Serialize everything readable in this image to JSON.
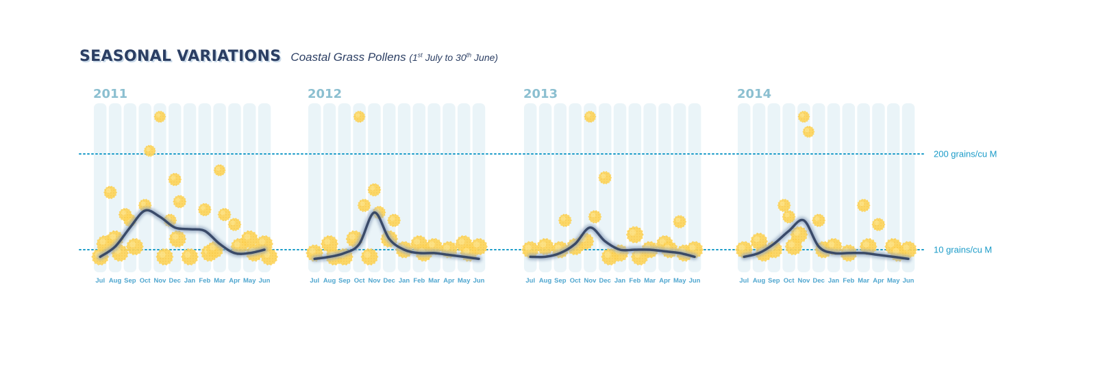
{
  "title": "SEASONAL VARIATIONS",
  "subtitle": {
    "main": "Coastal Grass Pollens",
    "paren_open": "(1",
    "sup1": "st",
    "mid": " July to 30",
    "sup2": "th",
    "paren_close": " June)"
  },
  "colors": {
    "title": "#2b3e63",
    "year_label": "#8bbfd0",
    "month_label": "#4fa6cf",
    "reference_line": "#1a9bc8",
    "column_bg": "#eaf4f8",
    "pollen": "#fdd55c",
    "trend": "#2d3e5e"
  },
  "chart_data": {
    "type": "scatter",
    "y_scale": "log",
    "x_categories": [
      "Jul",
      "Aug",
      "Sep",
      "Oct",
      "Nov",
      "Dec",
      "Jan",
      "Feb",
      "Mar",
      "Apr",
      "May",
      "Jun"
    ],
    "reference_lines": [
      {
        "value": 200,
        "label": "200 grains/cu M"
      },
      {
        "value": 10,
        "label": "10 grains/cu M"
      }
    ],
    "panels": [
      {
        "year": "2011",
        "points": [
          {
            "month": "Jul",
            "value": 8
          },
          {
            "month": "Jul",
            "value": 12
          },
          {
            "month": "Aug",
            "value": 14
          },
          {
            "month": "Aug",
            "value": 9
          },
          {
            "month": "Aug",
            "value": 60
          },
          {
            "month": "Sep",
            "value": 25
          },
          {
            "month": "Sep",
            "value": 11
          },
          {
            "month": "Sep",
            "value": 30
          },
          {
            "month": "Oct",
            "value": 40
          },
          {
            "month": "Oct",
            "value": 220
          },
          {
            "month": "Nov",
            "value": 640
          },
          {
            "month": "Nov",
            "value": 8
          },
          {
            "month": "Dec",
            "value": 90
          },
          {
            "month": "Dec",
            "value": 45
          },
          {
            "month": "Dec",
            "value": 25
          },
          {
            "month": "Dec",
            "value": 14
          },
          {
            "month": "Jan",
            "value": 8
          },
          {
            "month": "Feb",
            "value": 35
          },
          {
            "month": "Feb",
            "value": 9
          },
          {
            "month": "Mar",
            "value": 120
          },
          {
            "month": "Mar",
            "value": 30
          },
          {
            "month": "Mar",
            "value": 10
          },
          {
            "month": "Apr",
            "value": 22
          },
          {
            "month": "Apr",
            "value": 11
          },
          {
            "month": "May",
            "value": 14
          },
          {
            "month": "May",
            "value": 9
          },
          {
            "month": "Jun",
            "value": 12
          },
          {
            "month": "Jun",
            "value": 8
          }
        ],
        "trend": [
          8,
          11,
          20,
          34,
          28,
          20,
          19,
          18,
          12,
          9,
          9,
          10
        ]
      },
      {
        "year": "2012",
        "points": [
          {
            "month": "Jul",
            "value": 9
          },
          {
            "month": "Aug",
            "value": 12
          },
          {
            "month": "Aug",
            "value": 8
          },
          {
            "month": "Sep",
            "value": 8
          },
          {
            "month": "Oct",
            "value": 640
          },
          {
            "month": "Oct",
            "value": 40
          },
          {
            "month": "Oct",
            "value": 14
          },
          {
            "month": "Nov",
            "value": 65
          },
          {
            "month": "Nov",
            "value": 32
          },
          {
            "month": "Nov",
            "value": 8
          },
          {
            "month": "Dec",
            "value": 14
          },
          {
            "month": "Dec",
            "value": 25
          },
          {
            "month": "Jan",
            "value": 10
          },
          {
            "month": "Feb",
            "value": 12
          },
          {
            "month": "Feb",
            "value": 9
          },
          {
            "month": "Mar",
            "value": 11
          },
          {
            "month": "Apr",
            "value": 10
          },
          {
            "month": "May",
            "value": 12
          },
          {
            "month": "May",
            "value": 9
          },
          {
            "month": "Jun",
            "value": 11
          }
        ],
        "trend": [
          7.5,
          8,
          9,
          12,
          32,
          14,
          10,
          9,
          9,
          8.5,
          8,
          7.5
        ]
      },
      {
        "year": "2013",
        "points": [
          {
            "month": "Jul",
            "value": 10
          },
          {
            "month": "Aug",
            "value": 11
          },
          {
            "month": "Sep",
            "value": 10
          },
          {
            "month": "Sep",
            "value": 25
          },
          {
            "month": "Oct",
            "value": 11
          },
          {
            "month": "Nov",
            "value": 640
          },
          {
            "month": "Nov",
            "value": 28
          },
          {
            "month": "Nov",
            "value": 13
          },
          {
            "month": "Dec",
            "value": 95
          },
          {
            "month": "Dec",
            "value": 8
          },
          {
            "month": "Jan",
            "value": 9
          },
          {
            "month": "Feb",
            "value": 16
          },
          {
            "month": "Feb",
            "value": 8
          },
          {
            "month": "Mar",
            "value": 10
          },
          {
            "month": "Apr",
            "value": 12
          },
          {
            "month": "Apr",
            "value": 10
          },
          {
            "month": "May",
            "value": 24
          },
          {
            "month": "May",
            "value": 9
          },
          {
            "month": "Jun",
            "value": 10
          }
        ],
        "trend": [
          8,
          8,
          9,
          12,
          20,
          13,
          10,
          10,
          10,
          9.5,
          9,
          8
        ]
      },
      {
        "year": "2014",
        "points": [
          {
            "month": "Jul",
            "value": 10
          },
          {
            "month": "Aug",
            "value": 13
          },
          {
            "month": "Aug",
            "value": 9
          },
          {
            "month": "Sep",
            "value": 10
          },
          {
            "month": "Oct",
            "value": 28
          },
          {
            "month": "Oct",
            "value": 11
          },
          {
            "month": "Oct",
            "value": 40
          },
          {
            "month": "Nov",
            "value": 640
          },
          {
            "month": "Nov",
            "value": 400
          },
          {
            "month": "Nov",
            "value": 16
          },
          {
            "month": "Dec",
            "value": 25
          },
          {
            "month": "Dec",
            "value": 10
          },
          {
            "month": "Jan",
            "value": 11
          },
          {
            "month": "Feb",
            "value": 9
          },
          {
            "month": "Mar",
            "value": 40
          },
          {
            "month": "Mar",
            "value": 11
          },
          {
            "month": "Apr",
            "value": 22
          },
          {
            "month": "May",
            "value": 11
          },
          {
            "month": "May",
            "value": 9
          },
          {
            "month": "Jun",
            "value": 10
          }
        ],
        "trend": [
          8,
          9,
          12,
          18,
          25,
          11,
          9,
          9,
          9,
          8.5,
          8,
          7.5
        ]
      }
    ]
  }
}
